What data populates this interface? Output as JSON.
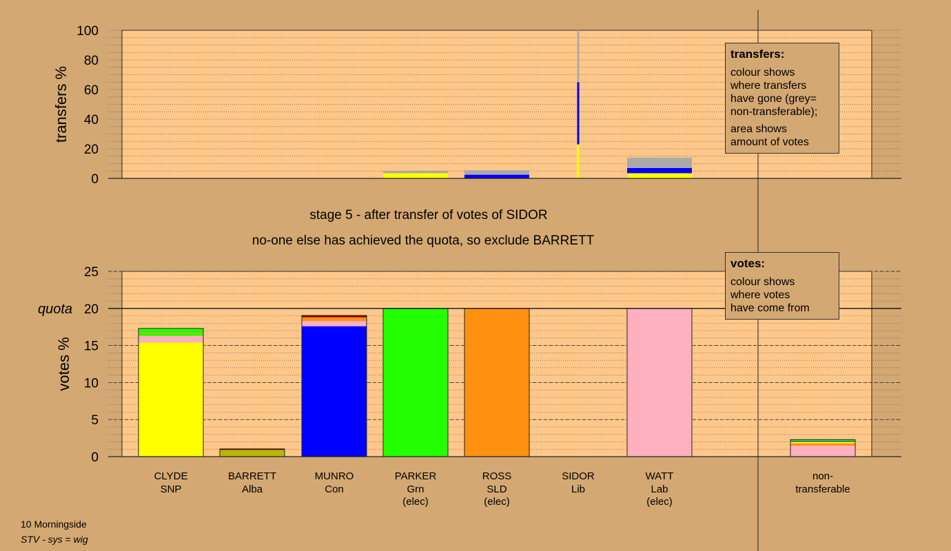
{
  "chart_data": [
    {
      "type": "bar",
      "name": "transfers",
      "ylabel": "transfers %",
      "ylim": [
        0,
        100
      ],
      "yticks": [
        0,
        20,
        40,
        60,
        80,
        100
      ],
      "categories": [
        "CLYDE",
        "BARRETT",
        "MUNRO",
        "PARKER",
        "ROSS",
        "SIDOR",
        "WATT",
        "non-transferable"
      ],
      "stacks": [
        [],
        [],
        [],
        [
          {
            "color": "#ffff00",
            "value": 3.5
          },
          {
            "color": "#aaaaaa",
            "value": 1.5
          }
        ],
        [
          {
            "color": "#0000ff",
            "value": 2.5
          },
          {
            "color": "#aaaaaa",
            "value": 3
          }
        ],
        [
          {
            "color": "#ffff00",
            "value": 23
          },
          {
            "color": "#0000ff",
            "value": 42
          },
          {
            "color": "#aaaaaa",
            "value": 35
          }
        ],
        [
          {
            "color": "#ffff00",
            "value": 3.5
          },
          {
            "color": "#0000ff",
            "value": 3.5
          },
          {
            "color": "#aaaaaa",
            "value": 7
          }
        ],
        []
      ]
    },
    {
      "type": "bar",
      "name": "votes",
      "ylabel": "votes %",
      "ylim": [
        0,
        25
      ],
      "yticks": [
        0,
        5,
        10,
        15,
        20,
        25
      ],
      "quota": 20,
      "quota_label": "quota",
      "categories": [
        "CLYDE",
        "BARRETT",
        "MUNRO",
        "PARKER",
        "ROSS",
        "SIDOR",
        "WATT",
        "non-transferable"
      ],
      "stacks": [
        [
          {
            "color": "#ffff00",
            "value": 15.4
          },
          {
            "color": "#ffb0c0",
            "value": 0.9
          },
          {
            "color": "#22ff00",
            "value": 0.3
          },
          {
            "color": "#ff9010",
            "value": 0.1
          },
          {
            "color": "#22ff00",
            "value": 0.6
          }
        ],
        [
          {
            "color": "#b8b800",
            "value": 0.9
          },
          {
            "color": "#8b0000",
            "value": 0.15
          }
        ],
        [
          {
            "color": "#0000ff",
            "value": 17.6
          },
          {
            "color": "#ffb0c0",
            "value": 0.7
          },
          {
            "color": "#ff9010",
            "value": 0.5
          },
          {
            "color": "#8b0000",
            "value": 0.25
          }
        ],
        [
          {
            "color": "#22ff00",
            "value": 20
          }
        ],
        [
          {
            "color": "#ff9010",
            "value": 20
          }
        ],
        [],
        [
          {
            "color": "#ffb0c0",
            "value": 20
          }
        ],
        [
          {
            "color": "#ffb0c0",
            "value": 1.5
          },
          {
            "color": "#ff9010",
            "value": 0.3
          },
          {
            "color": "#ffff00",
            "value": 0.2
          },
          {
            "color": "#0000ff",
            "value": 0.1
          },
          {
            "color": "#22ff00",
            "value": 0.2
          }
        ]
      ]
    }
  ],
  "labels": {
    "candidates": [
      {
        "name": "CLYDE",
        "party": "SNP",
        "note": ""
      },
      {
        "name": "BARRETT",
        "party": "Alba",
        "note": ""
      },
      {
        "name": "MUNRO",
        "party": "Con",
        "note": ""
      },
      {
        "name": "PARKER",
        "party": "Grn",
        "note": "(elec)"
      },
      {
        "name": "ROSS",
        "party": "SLD",
        "note": "(elec)"
      },
      {
        "name": "SIDOR",
        "party": "Lib",
        "note": ""
      },
      {
        "name": "WATT",
        "party": "Lab",
        "note": "(elec)"
      }
    ],
    "nontransferable": [
      "non-",
      "transferable"
    ]
  },
  "stage_line1": "stage 5 - after transfer of votes of SIDOR",
  "stage_line2": "no-one else has achieved the quota, so exclude BARRETT",
  "legend_transfers": {
    "title": "transfers:",
    "lines1": [
      "colour shows",
      "where transfers",
      "have gone (grey=",
      "non-transferable);"
    ],
    "lines2": [
      "area shows",
      "amount of votes"
    ]
  },
  "legend_votes": {
    "title": "votes:",
    "lines": [
      "colour shows",
      "where votes",
      "have come from"
    ]
  },
  "footer": {
    "line1": "10 Morningside",
    "line2": "STV - sys = wig"
  },
  "colors": {
    "background": "#d4a872",
    "plot_area": "#ffc88a"
  }
}
